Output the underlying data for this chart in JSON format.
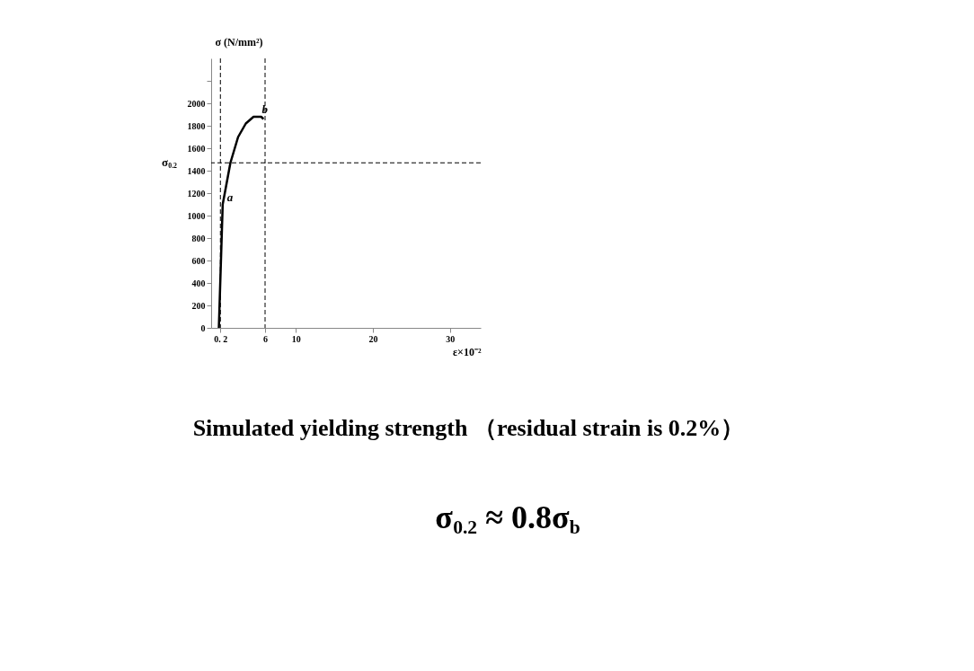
{
  "chart_data": {
    "type": "line",
    "xlabel": "ε×10⁻²",
    "ylabel": "σ (N/mm²)",
    "x": [
      0,
      0.5,
      1.5,
      2.5,
      3.5,
      4.5,
      5.5,
      5.8
    ],
    "series": [
      {
        "color": "#000000",
        "values": [
          0,
          1100,
          1470,
          1700,
          1820,
          1880,
          1880,
          1860
        ]
      }
    ],
    "xlim": [
      -1,
      34
    ],
    "xticks": [
      {
        "value": 0.2,
        "label": "0. 2"
      },
      6,
      10,
      20,
      30
    ],
    "ylim": [
      0,
      2400
    ],
    "yticks": [
      0,
      200,
      400,
      600,
      800,
      1000,
      1200,
      1400,
      1600,
      1800,
      2000,
      {
        "value": 2200,
        "label": null
      }
    ],
    "ref_lines": [
      {
        "axis": "y",
        "value": 1470,
        "label": "σ$_{0.2}$",
        "line_style": "dashed"
      },
      {
        "axis": "x",
        "value": 0.2,
        "line_style": "dashed"
      },
      {
        "axis": "x",
        "value": 6,
        "line_style": "dashed"
      }
    ],
    "annotations": [
      {
        "text": "a",
        "x": 0.5,
        "y": 1100
      },
      {
        "text": "b",
        "x": 5,
        "y": 1880
      },
      "Simulated yielding strength （residual strain is 0.2%）",
      "σ$_{0.2}$ ≈ 0.8σ$_{b}$"
    ],
    "grid": false,
    "marker": "none",
    "line_style": "solid"
  }
}
